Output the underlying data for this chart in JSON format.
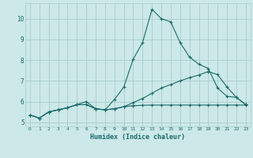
{
  "xlabel": "Humidex (Indice chaleur)",
  "background_color": "#cce8e8",
  "grid_color": "#aacccc",
  "line_color": "#1a6b6b",
  "xlim": [
    -0.5,
    23.5
  ],
  "ylim": [
    4.8,
    10.75
  ],
  "x": [
    0,
    1,
    2,
    3,
    4,
    5,
    6,
    7,
    8,
    9,
    10,
    11,
    12,
    13,
    14,
    15,
    16,
    17,
    18,
    19,
    20,
    21,
    22,
    23
  ],
  "line1": [
    5.35,
    5.2,
    5.5,
    5.6,
    5.7,
    5.85,
    6.0,
    5.65,
    5.6,
    6.1,
    6.7,
    8.05,
    8.85,
    10.45,
    10.0,
    9.85,
    8.85,
    8.15,
    7.8,
    7.6,
    6.65,
    6.25,
    6.2,
    5.85
  ],
  "line2": [
    5.35,
    5.2,
    5.5,
    5.6,
    5.7,
    5.85,
    5.85,
    5.65,
    5.6,
    5.65,
    5.75,
    5.8,
    5.82,
    5.83,
    5.83,
    5.83,
    5.83,
    5.83,
    5.83,
    5.83,
    5.83,
    5.83,
    5.83,
    5.83
  ],
  "line3": [
    5.35,
    5.2,
    5.5,
    5.6,
    5.7,
    5.85,
    5.85,
    5.65,
    5.6,
    5.65,
    5.75,
    5.95,
    6.15,
    6.4,
    6.65,
    6.82,
    7.0,
    7.15,
    7.28,
    7.45,
    7.3,
    6.7,
    6.2,
    5.85
  ]
}
